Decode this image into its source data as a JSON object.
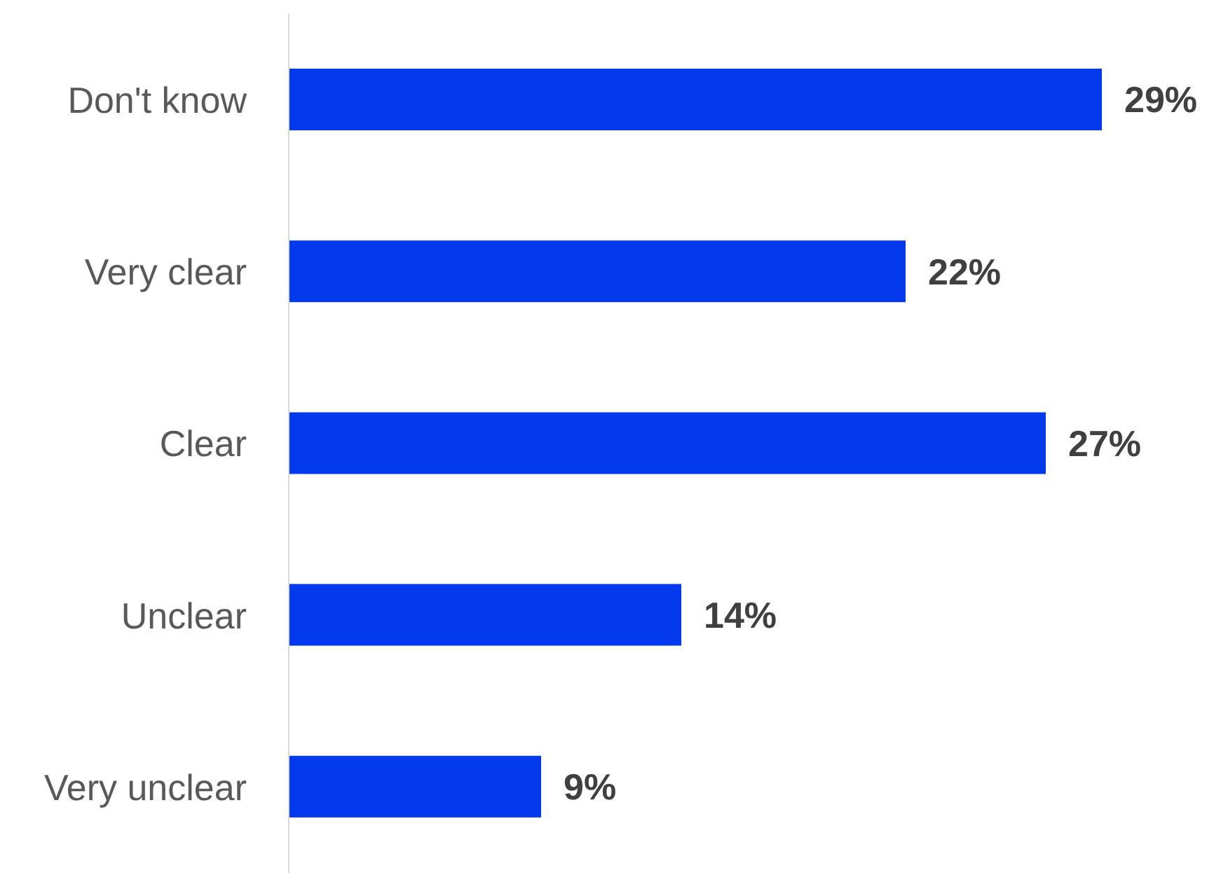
{
  "chart_data": {
    "type": "bar",
    "orientation": "horizontal",
    "categories": [
      "Don't know",
      "Very clear",
      "Clear",
      "Unclear",
      "Very unclear"
    ],
    "values": [
      29,
      22,
      27,
      14,
      9
    ],
    "value_labels": [
      "29%",
      "22%",
      "27%",
      "14%",
      "9%"
    ],
    "color": "#0339ed"
  }
}
